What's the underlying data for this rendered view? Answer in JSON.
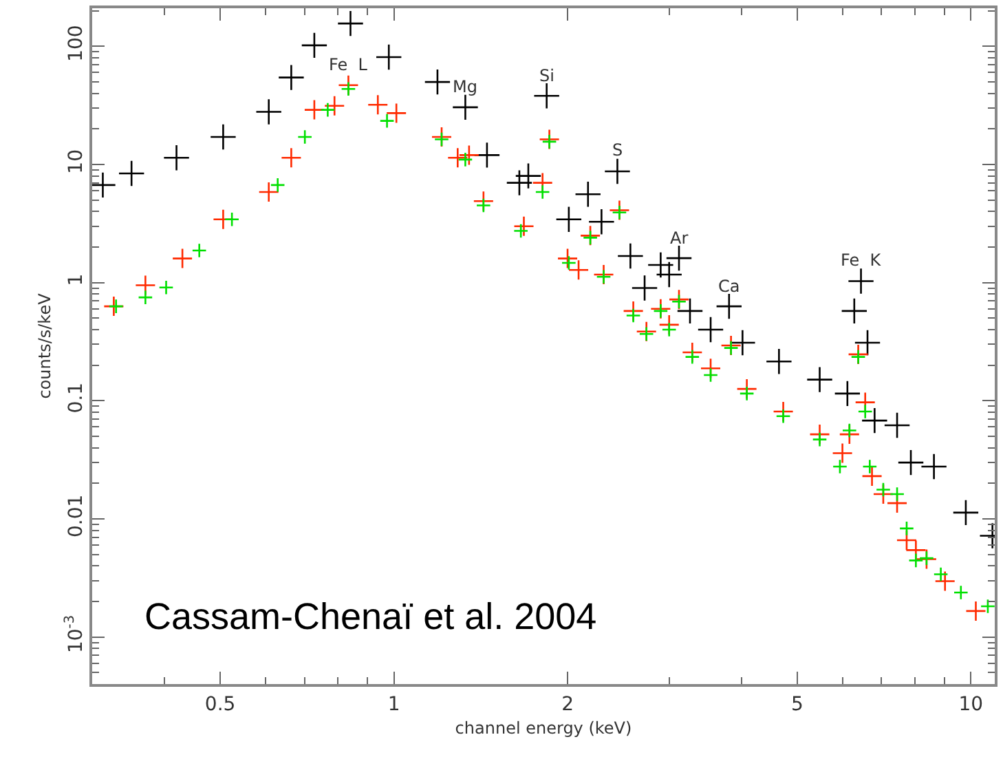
{
  "chart_data": {
    "type": "scatter",
    "xlabel": "channel energy (keV)",
    "ylabel": "counts/s/keV",
    "log": "xy",
    "grid": false,
    "marker": "cross",
    "xlim": [
      0.3,
      11
    ],
    "xticks": [
      0.5,
      1,
      2,
      5,
      10
    ],
    "ylim": [
      0.0004,
      210
    ],
    "yticks": [
      {
        "value": 0.001,
        "label": "10$^{-3}$"
      },
      0.01,
      0.1,
      1,
      10,
      100
    ],
    "series": [
      {
        "color": "#000000",
        "x": [
          0.313,
          0.351,
          0.42,
          0.506,
          0.607,
          0.664,
          0.728,
          0.841,
          0.98,
          1.19,
          1.33,
          1.45,
          1.65,
          1.71,
          1.84,
          2.01,
          2.17,
          2.29,
          2.44,
          2.57,
          2.72,
          2.9,
          3.0,
          3.12,
          3.26,
          3.54,
          3.81,
          4.02,
          4.65,
          5.47,
          6.11,
          6.28,
          6.45,
          6.62,
          6.81,
          7.45,
          7.87,
          8.63,
          9.8,
          10.9
        ],
        "values": [
          6.7,
          8.4,
          11.4,
          17.1,
          27.9,
          54.5,
          102,
          156,
          81,
          49.9,
          30.5,
          12.0,
          7.0,
          8.0,
          38.1,
          3.43,
          5.6,
          3.27,
          8.75,
          1.68,
          0.9,
          1.41,
          1.17,
          1.61,
          0.575,
          0.4,
          0.63,
          0.31,
          0.215,
          0.151,
          0.115,
          0.575,
          1.03,
          0.31,
          0.068,
          0.062,
          0.03,
          0.0277,
          0.0113,
          0.0072
        ]
      },
      {
        "color": "#ff2a00",
        "x": [
          0.327,
          0.371,
          0.43,
          0.506,
          0.607,
          0.664,
          0.728,
          0.789,
          0.834,
          0.938,
          1.01,
          1.21,
          1.29,
          1.35,
          1.43,
          1.68,
          1.81,
          1.86,
          2.0,
          2.09,
          2.19,
          2.31,
          2.46,
          2.6,
          2.74,
          2.9,
          3.0,
          3.12,
          3.29,
          3.54,
          3.84,
          4.09,
          4.73,
          5.47,
          5.99,
          6.16,
          6.38,
          6.56,
          6.74,
          7.05,
          7.45,
          7.74,
          8.03,
          8.38,
          9.02,
          10.2
        ],
        "values": [
          0.63,
          0.95,
          1.6,
          3.43,
          5.85,
          11.4,
          29,
          31.4,
          46.9,
          32,
          27.2,
          17.1,
          11.4,
          12,
          4.9,
          3.0,
          7.0,
          16.3,
          1.6,
          1.28,
          2.5,
          1.17,
          4.1,
          0.575,
          0.385,
          0.6,
          0.44,
          0.72,
          0.257,
          0.188,
          0.294,
          0.126,
          0.081,
          0.052,
          0.036,
          0.052,
          0.247,
          0.097,
          0.023,
          0.0162,
          0.0136,
          0.0066,
          0.00544,
          0.00456,
          0.00297,
          0.00166
        ]
      },
      {
        "color": "#00e000",
        "x": [
          0.33,
          0.371,
          0.403,
          0.46,
          0.524,
          0.629,
          0.701,
          0.768,
          0.834,
          0.973,
          1.21,
          1.33,
          1.43,
          1.66,
          1.81,
          1.86,
          2.01,
          2.19,
          2.31,
          2.46,
          2.6,
          2.74,
          2.9,
          3.0,
          3.12,
          3.29,
          3.54,
          3.84,
          4.09,
          4.73,
          5.47,
          5.93,
          6.16,
          6.38,
          6.56,
          6.68,
          7.05,
          7.45,
          7.74,
          8.03,
          8.38,
          8.87,
          9.61,
          10.7
        ],
        "values": [
          0.63,
          0.75,
          0.91,
          1.87,
          3.43,
          6.7,
          17.1,
          29,
          43.6,
          23.4,
          16.3,
          11,
          4.5,
          2.74,
          5.85,
          15.6,
          1.47,
          2.4,
          1.12,
          3.92,
          0.526,
          0.368,
          0.575,
          0.4,
          0.69,
          0.235,
          0.165,
          0.28,
          0.115,
          0.074,
          0.047,
          0.0277,
          0.056,
          0.235,
          0.081,
          0.0277,
          0.0177,
          0.0162,
          0.0083,
          0.00445,
          0.00465,
          0.0034,
          0.00238,
          0.00182
        ]
      }
    ],
    "annotations": [
      {
        "text": "Fe  L",
        "x": 0.834,
        "y": 46.9
      },
      {
        "text": "Mg",
        "x": 1.33,
        "y": 30.5
      },
      {
        "text": "Si",
        "x": 1.84,
        "y": 38.1
      },
      {
        "text": "S",
        "x": 2.44,
        "y": 8.75
      },
      {
        "text": "Ar",
        "x": 3.12,
        "y": 1.61
      },
      {
        "text": "Ca",
        "x": 3.81,
        "y": 0.63
      },
      {
        "text": "Fe  K",
        "x": 6.45,
        "y": 1.03
      },
      "Cassam-Chenaï et al. 2004"
    ]
  }
}
